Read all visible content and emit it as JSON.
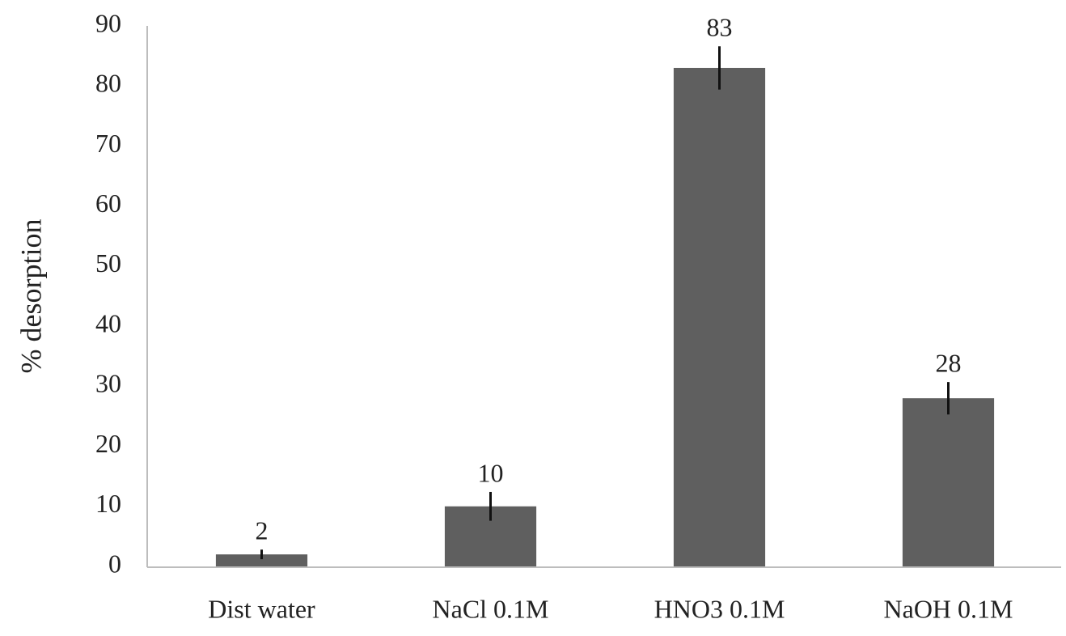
{
  "chart_data": {
    "type": "bar",
    "y_label": "% desorption",
    "categories": [
      "Dist water",
      "NaCl 0.1M",
      "HNO3 0.1M",
      "NaOH 0.1M"
    ],
    "values": [
      2,
      10,
      83,
      28
    ],
    "errors": [
      0.8,
      2.4,
      3.6,
      2.7
    ],
    "color": "#5f5f5f",
    "ylim": [
      0,
      90
    ],
    "yticks": [
      0,
      10,
      20,
      30,
      40,
      50,
      60,
      70,
      80,
      90
    ],
    "grid": false
  }
}
